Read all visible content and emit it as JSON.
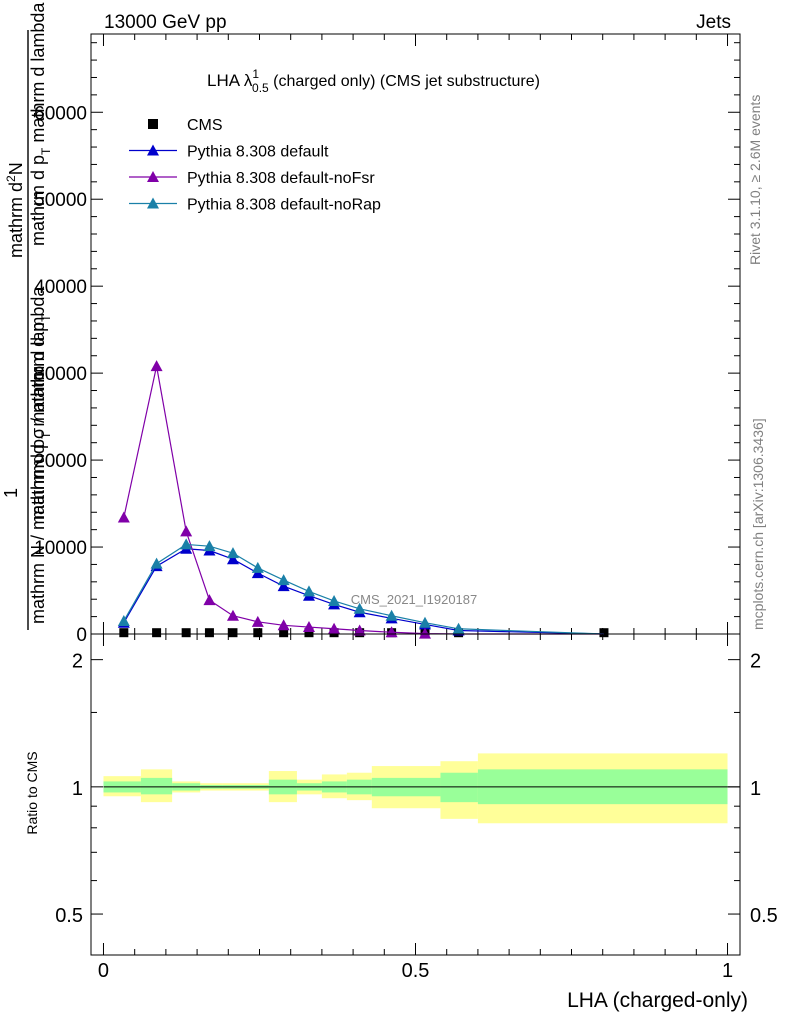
{
  "header": {
    "left": "13000 GeV pp",
    "right": "Jets"
  },
  "side_labels": {
    "rivet": "Rivet 3.1.10, ≥ 2.6M events",
    "mcplots": "mcplots.cern.ch [arXiv:1306.3436]"
  },
  "watermark": "CMS_2021_I1920187",
  "title": {
    "main": "LHA λ",
    "sup": "1",
    "sub": "0.5",
    "rest": " (charged only) (CMS jet substructure)"
  },
  "ylabel_main": {
    "one": "1",
    "numerator": "mathrm d",
    "numerator_sup": "2",
    "numerator_rest": "N",
    "denominator": "mathrm N / mathrm d p",
    "denominator_sub": "T",
    "denominator_rest": " mathrm d lambda",
    "overlap1": "mathrm d p",
    "overlap1_sub": "T",
    "overlap1_rest": " mathrm d lambda",
    "overlap2": "mathrm d σ / mathrm d p",
    "overlap2_sub": "T"
  },
  "ylabel_ratio": "Ratio to CMS",
  "xlabel": "LHA (charged-only)",
  "chart_data": {
    "type": "line",
    "x": [
      0.0326,
      0.0851,
      0.1325,
      0.1698,
      0.2075,
      0.2473,
      0.2887,
      0.3293,
      0.3695,
      0.4105,
      0.4617,
      0.5152,
      0.569,
      0.802
    ],
    "xlim": [
      -0.02,
      1.02
    ],
    "ylim": [
      0,
      69000
    ],
    "series": [
      {
        "name": "CMS",
        "color": "#000000",
        "marker": "square",
        "values": [
          150,
          150,
          150,
          150,
          150,
          150,
          150,
          150,
          150,
          150,
          150,
          150,
          150,
          150
        ]
      },
      {
        "name": "Pythia 8.308 default",
        "color": "#0000cc",
        "marker": "triangle",
        "values": [
          1300,
          7800,
          9800,
          9600,
          8600,
          7000,
          5500,
          4400,
          3400,
          2500,
          1800,
          1100,
          400,
          0
        ]
      },
      {
        "name": "Pythia 8.308 default-noFsr",
        "color": "#8000a8",
        "marker": "triangle",
        "values": [
          13400,
          30800,
          11800,
          3900,
          2100,
          1400,
          1000,
          800,
          600,
          400,
          200,
          50,
          0,
          0
        ]
      },
      {
        "name": "Pythia 8.308 default-noRap",
        "color": "#1a80a8",
        "marker": "triangle",
        "values": [
          1500,
          8100,
          10300,
          10100,
          9300,
          7600,
          6200,
          4900,
          3800,
          2900,
          2100,
          1300,
          600,
          0
        ]
      }
    ],
    "yticks_labels": [
      "0",
      "10000",
      "20000",
      "30000",
      "40000",
      "50000",
      "60000"
    ],
    "yticks": [
      0,
      10000,
      20000,
      30000,
      40000,
      50000,
      60000
    ],
    "ratio": {
      "ylim": [
        0.4,
        2.3
      ],
      "yticks_labels": [
        "0.5",
        "1",
        "2"
      ],
      "yticks": [
        0.5,
        1,
        2
      ],
      "bin_edges": [
        0.0,
        0.06,
        0.11,
        0.155,
        0.19,
        0.23,
        0.265,
        0.31,
        0.35,
        0.39,
        0.43,
        0.54,
        0.6,
        1.0
      ],
      "band_inner_lo": [
        0.97,
        0.96,
        0.98,
        0.99,
        0.99,
        0.99,
        0.96,
        0.98,
        0.97,
        0.96,
        0.95,
        0.92,
        0.91
      ],
      "band_inner_hi": [
        1.03,
        1.05,
        1.02,
        1.01,
        1.01,
        1.01,
        1.04,
        1.02,
        1.03,
        1.04,
        1.05,
        1.08,
        1.1
      ],
      "band_outer_lo": [
        0.95,
        0.92,
        0.97,
        0.98,
        0.98,
        0.98,
        0.92,
        0.96,
        0.94,
        0.93,
        0.89,
        0.84,
        0.82
      ],
      "band_outer_hi": [
        1.06,
        1.1,
        1.03,
        1.02,
        1.02,
        1.02,
        1.09,
        1.04,
        1.07,
        1.08,
        1.12,
        1.15,
        1.2
      ],
      "inner_color": "#99ff99",
      "outer_color": "#ffff99",
      "reference": 1.0
    },
    "xticks_labels": [
      "0",
      "0.5",
      "1"
    ],
    "xticks": [
      0,
      0.5,
      1
    ]
  }
}
